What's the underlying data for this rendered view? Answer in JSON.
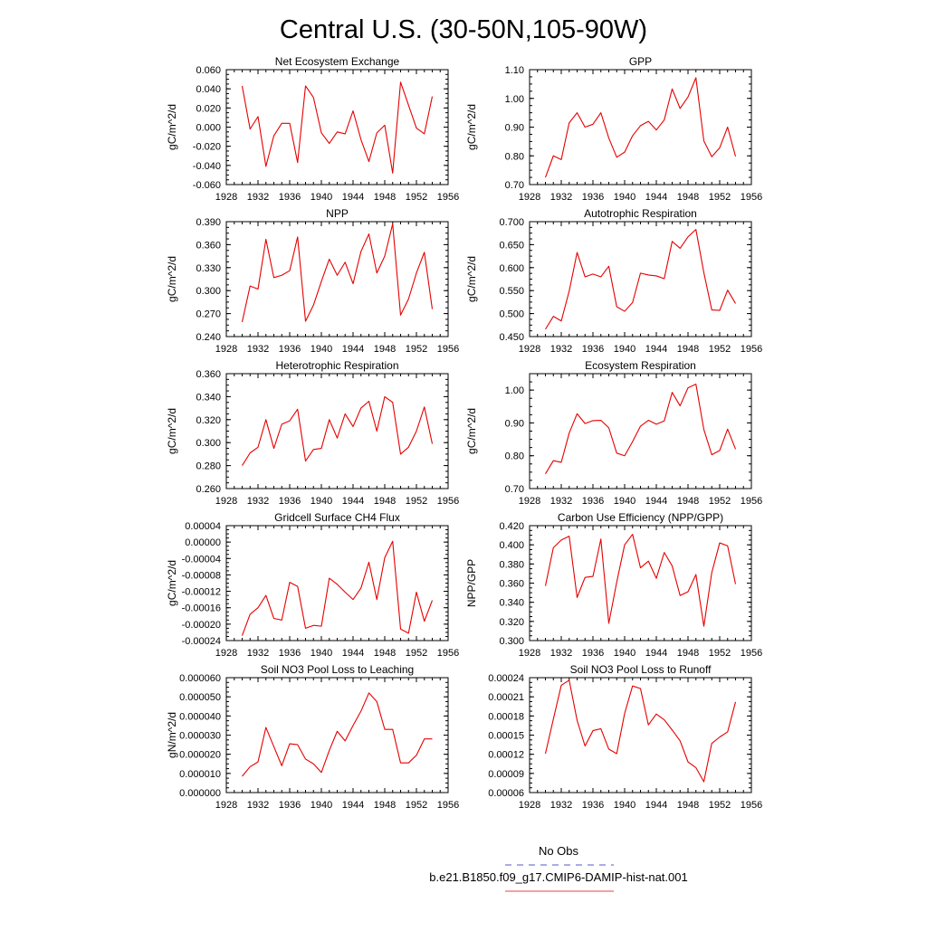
{
  "page_title": "Central U.S. (30-50N,105-90W)",
  "legend": {
    "entries": [
      {
        "label": "No Obs",
        "color": "#5555cc",
        "style": "dashed"
      },
      {
        "label": "b.e21.B1850.f09_g17.CMIP6-DAMIP-hist-nat.001",
        "color": "#e8404a",
        "style": "solid"
      }
    ]
  },
  "series_color": "#e60000",
  "chart_data": [
    {
      "type": "line",
      "title": "Net Ecosystem Exchange",
      "ylabel": "gC/m^2/d",
      "xlim": [
        1928,
        1956
      ],
      "ylim": [
        -0.06,
        0.06
      ],
      "xticks": [
        1928,
        1932,
        1936,
        1940,
        1944,
        1948,
        1952,
        1956
      ],
      "yticks": [
        "-0.060",
        "-0.040",
        "-0.020",
        "0.000",
        "0.020",
        "0.040",
        "0.060"
      ],
      "x": [
        1930,
        1931,
        1932,
        1933,
        1934,
        1935,
        1936,
        1937,
        1938,
        1939,
        1940,
        1941,
        1942,
        1943,
        1944,
        1945,
        1946,
        1947,
        1948,
        1949,
        1950,
        1951,
        1952,
        1953,
        1954
      ],
      "y": [
        0.043,
        -0.002,
        0.011,
        -0.041,
        -0.009,
        0.004,
        0.004,
        -0.037,
        0.043,
        0.031,
        -0.006,
        -0.017,
        -0.005,
        -0.007,
        0.017,
        -0.013,
        -0.036,
        -0.006,
        0.002,
        -0.048,
        0.047,
        0.023,
        -0.001,
        -0.007,
        0.032
      ]
    },
    {
      "type": "line",
      "title": "GPP",
      "ylabel": "gC/m^2/d",
      "xlim": [
        1928,
        1956
      ],
      "ylim": [
        0.7,
        1.1
      ],
      "xticks": [
        1928,
        1932,
        1936,
        1940,
        1944,
        1948,
        1952,
        1956
      ],
      "yticks": [
        "0.70",
        "0.80",
        "0.90",
        "1.00",
        "1.10"
      ],
      "x": [
        1930,
        1931,
        1932,
        1933,
        1934,
        1935,
        1936,
        1937,
        1938,
        1939,
        1940,
        1941,
        1942,
        1943,
        1944,
        1945,
        1946,
        1947,
        1948,
        1949,
        1950,
        1951,
        1952,
        1953,
        1954
      ],
      "y": [
        0.725,
        0.8,
        0.787,
        0.915,
        0.95,
        0.9,
        0.91,
        0.95,
        0.862,
        0.795,
        0.813,
        0.87,
        0.905,
        0.92,
        0.89,
        0.925,
        1.033,
        0.965,
        1.005,
        1.072,
        0.852,
        0.797,
        0.828,
        0.9,
        0.798
      ]
    },
    {
      "type": "line",
      "title": "NPP",
      "ylabel": "gC/m^2/d",
      "xlim": [
        1928,
        1956
      ],
      "ylim": [
        0.24,
        0.39
      ],
      "xticks": [
        1928,
        1932,
        1936,
        1940,
        1944,
        1948,
        1952,
        1956
      ],
      "yticks": [
        "0.240",
        "0.270",
        "0.300",
        "0.330",
        "0.360",
        "0.390"
      ],
      "x": [
        1930,
        1931,
        1932,
        1933,
        1934,
        1935,
        1936,
        1937,
        1938,
        1939,
        1940,
        1941,
        1942,
        1943,
        1944,
        1945,
        1946,
        1947,
        1948,
        1949,
        1950,
        1951,
        1952,
        1953,
        1954
      ],
      "y": [
        0.259,
        0.306,
        0.302,
        0.367,
        0.317,
        0.32,
        0.326,
        0.37,
        0.26,
        0.281,
        0.312,
        0.341,
        0.32,
        0.337,
        0.309,
        0.351,
        0.374,
        0.323,
        0.345,
        0.387,
        0.268,
        0.289,
        0.323,
        0.35,
        0.276
      ]
    },
    {
      "type": "line",
      "title": "Autotrophic Respiration",
      "ylabel": "gC/m^2/d",
      "xlim": [
        1928,
        1956
      ],
      "ylim": [
        0.45,
        0.7
      ],
      "xticks": [
        1928,
        1932,
        1936,
        1940,
        1944,
        1948,
        1952,
        1956
      ],
      "yticks": [
        "0.450",
        "0.500",
        "0.550",
        "0.600",
        "0.650",
        "0.700"
      ],
      "x": [
        1930,
        1931,
        1932,
        1933,
        1934,
        1935,
        1936,
        1937,
        1938,
        1939,
        1940,
        1941,
        1942,
        1943,
        1944,
        1945,
        1946,
        1947,
        1948,
        1949,
        1950,
        1951,
        1952,
        1953,
        1954
      ],
      "y": [
        0.466,
        0.494,
        0.484,
        0.549,
        0.633,
        0.58,
        0.586,
        0.58,
        0.603,
        0.515,
        0.505,
        0.524,
        0.588,
        0.584,
        0.582,
        0.576,
        0.657,
        0.642,
        0.667,
        0.683,
        0.589,
        0.508,
        0.507,
        0.551,
        0.522
      ]
    },
    {
      "type": "line",
      "title": "Heterotrophic Respiration",
      "ylabel": "gC/m^2/d",
      "xlim": [
        1928,
        1956
      ],
      "ylim": [
        0.26,
        0.36
      ],
      "xticks": [
        1928,
        1932,
        1936,
        1940,
        1944,
        1948,
        1952,
        1956
      ],
      "yticks": [
        "0.260",
        "0.280",
        "0.300",
        "0.320",
        "0.340",
        "0.360"
      ],
      "x": [
        1930,
        1931,
        1932,
        1933,
        1934,
        1935,
        1936,
        1937,
        1938,
        1939,
        1940,
        1941,
        1942,
        1943,
        1944,
        1945,
        1946,
        1947,
        1948,
        1949,
        1950,
        1951,
        1952,
        1953,
        1954
      ],
      "y": [
        0.28,
        0.291,
        0.296,
        0.32,
        0.295,
        0.316,
        0.319,
        0.329,
        0.284,
        0.294,
        0.295,
        0.32,
        0.304,
        0.325,
        0.314,
        0.33,
        0.336,
        0.31,
        0.34,
        0.335,
        0.29,
        0.296,
        0.31,
        0.331,
        0.299
      ]
    },
    {
      "type": "line",
      "title": "Ecosystem Respiration",
      "ylabel": "gC/m^2/d",
      "xlim": [
        1928,
        1956
      ],
      "ylim": [
        0.7,
        1.05
      ],
      "xticks": [
        1928,
        1932,
        1936,
        1940,
        1944,
        1948,
        1952,
        1956
      ],
      "yticks": [
        "0.70",
        "0.80",
        "0.90",
        "1.00"
      ],
      "x": [
        1930,
        1931,
        1932,
        1933,
        1934,
        1935,
        1936,
        1937,
        1938,
        1939,
        1940,
        1941,
        1942,
        1943,
        1944,
        1945,
        1946,
        1947,
        1948,
        1949,
        1950,
        1951,
        1952,
        1953,
        1954
      ],
      "y": [
        0.745,
        0.785,
        0.78,
        0.869,
        0.928,
        0.898,
        0.907,
        0.908,
        0.885,
        0.808,
        0.8,
        0.843,
        0.89,
        0.908,
        0.896,
        0.906,
        0.993,
        0.952,
        1.007,
        1.018,
        0.88,
        0.803,
        0.816,
        0.881,
        0.82
      ]
    },
    {
      "type": "line",
      "title": "Gridcell Surface CH4 Flux",
      "ylabel": "gC/m^2/d",
      "xlim": [
        1928,
        1956
      ],
      "ylim": [
        -0.00024,
        4e-05
      ],
      "xticks": [
        1928,
        1932,
        1936,
        1940,
        1944,
        1948,
        1952,
        1956
      ],
      "yticks": [
        "-0.00024",
        "-0.00020",
        "-0.00016",
        "-0.00012",
        "-0.00008",
        "-0.00004",
        "0.00000",
        "0.00004"
      ],
      "x": [
        1930,
        1931,
        1932,
        1933,
        1934,
        1935,
        1936,
        1937,
        1938,
        1939,
        1940,
        1941,
        1942,
        1943,
        1944,
        1945,
        1946,
        1947,
        1948,
        1949,
        1950,
        1951,
        1952,
        1953,
        1954
      ],
      "y": [
        -0.000228,
        -0.000176,
        -0.00016,
        -0.00013,
        -0.000186,
        -0.00019,
        -9.8e-05,
        -0.000108,
        -0.00021,
        -0.000203,
        -0.000205,
        -8.8e-05,
        -0.000103,
        -0.000122,
        -0.00014,
        -0.000112,
        -4.9e-05,
        -0.00014,
        -3.8e-05,
        2e-06,
        -0.000212,
        -0.000222,
        -0.000122,
        -0.000193,
        -0.000142
      ]
    },
    {
      "type": "line",
      "title": "Carbon Use Efficiency (NPP/GPP)",
      "ylabel": "NPP/GPP",
      "xlim": [
        1928,
        1956
      ],
      "ylim": [
        0.3,
        0.42
      ],
      "xticks": [
        1928,
        1932,
        1936,
        1940,
        1944,
        1948,
        1952,
        1956
      ],
      "yticks": [
        "0.300",
        "0.320",
        "0.340",
        "0.360",
        "0.380",
        "0.400",
        "0.420"
      ],
      "x": [
        1930,
        1931,
        1932,
        1933,
        1934,
        1935,
        1936,
        1937,
        1938,
        1939,
        1940,
        1941,
        1942,
        1943,
        1944,
        1945,
        1946,
        1947,
        1948,
        1949,
        1950,
        1951,
        1952,
        1953,
        1954
      ],
      "y": [
        0.357,
        0.397,
        0.405,
        0.409,
        0.345,
        0.366,
        0.367,
        0.406,
        0.318,
        0.361,
        0.4,
        0.411,
        0.376,
        0.383,
        0.365,
        0.392,
        0.378,
        0.347,
        0.351,
        0.369,
        0.315,
        0.371,
        0.402,
        0.399,
        0.359
      ]
    },
    {
      "type": "line",
      "title": "Soil NO3 Pool Loss to Leaching",
      "ylabel": "gN/m^2/d",
      "xlim": [
        1928,
        1956
      ],
      "ylim": [
        0,
        6e-05
      ],
      "xticks": [
        1928,
        1932,
        1936,
        1940,
        1944,
        1948,
        1952,
        1956
      ],
      "yticks": [
        "0.000000",
        "0.000010",
        "0.000020",
        "0.000030",
        "0.000040",
        "0.000050",
        "0.000060"
      ],
      "x": [
        1930,
        1931,
        1932,
        1933,
        1934,
        1935,
        1936,
        1937,
        1938,
        1939,
        1940,
        1941,
        1942,
        1943,
        1944,
        1945,
        1946,
        1947,
        1948,
        1949,
        1950,
        1951,
        1952,
        1953,
        1954
      ],
      "y": [
        8.5e-06,
        1.35e-05,
        1.6e-05,
        3.4e-05,
        2.4e-05,
        1.4e-05,
        2.55e-05,
        2.5e-05,
        1.75e-05,
        1.5e-05,
        1.05e-05,
        2.2e-05,
        3.2e-05,
        2.7e-05,
        3.5e-05,
        4.25e-05,
        5.2e-05,
        4.75e-05,
        3.3e-05,
        3.3e-05,
        1.55e-05,
        1.55e-05,
        1.95e-05,
        2.8e-05,
        2.8e-05
      ]
    },
    {
      "type": "line",
      "title": "Soil NO3 Pool Loss to Runoff",
      "ylabel": "",
      "xlim": [
        1928,
        1956
      ],
      "ylim": [
        6e-05,
        0.00024
      ],
      "xticks": [
        1928,
        1932,
        1936,
        1940,
        1944,
        1948,
        1952,
        1956
      ],
      "yticks": [
        "0.00006",
        "0.00009",
        "0.00012",
        "0.00015",
        "0.00018",
        "0.00021",
        "0.00024"
      ],
      "x": [
        1930,
        1931,
        1932,
        1933,
        1934,
        1935,
        1936,
        1937,
        1938,
        1939,
        1940,
        1941,
        1942,
        1943,
        1944,
        1945,
        1946,
        1947,
        1948,
        1949,
        1950,
        1951,
        1952,
        1953,
        1954
      ],
      "y": [
        0.000121,
        0.000175,
        0.000228,
        0.000236,
        0.000173,
        0.000133,
        0.000157,
        0.00016,
        0.000128,
        0.000121,
        0.000184,
        0.000227,
        0.000223,
        0.000166,
        0.000183,
        0.000174,
        0.000158,
        0.000141,
        0.000108,
        9.9e-05,
        7.7e-05,
        0.000137,
        0.000147,
        0.000155,
        0.000202
      ]
    }
  ]
}
